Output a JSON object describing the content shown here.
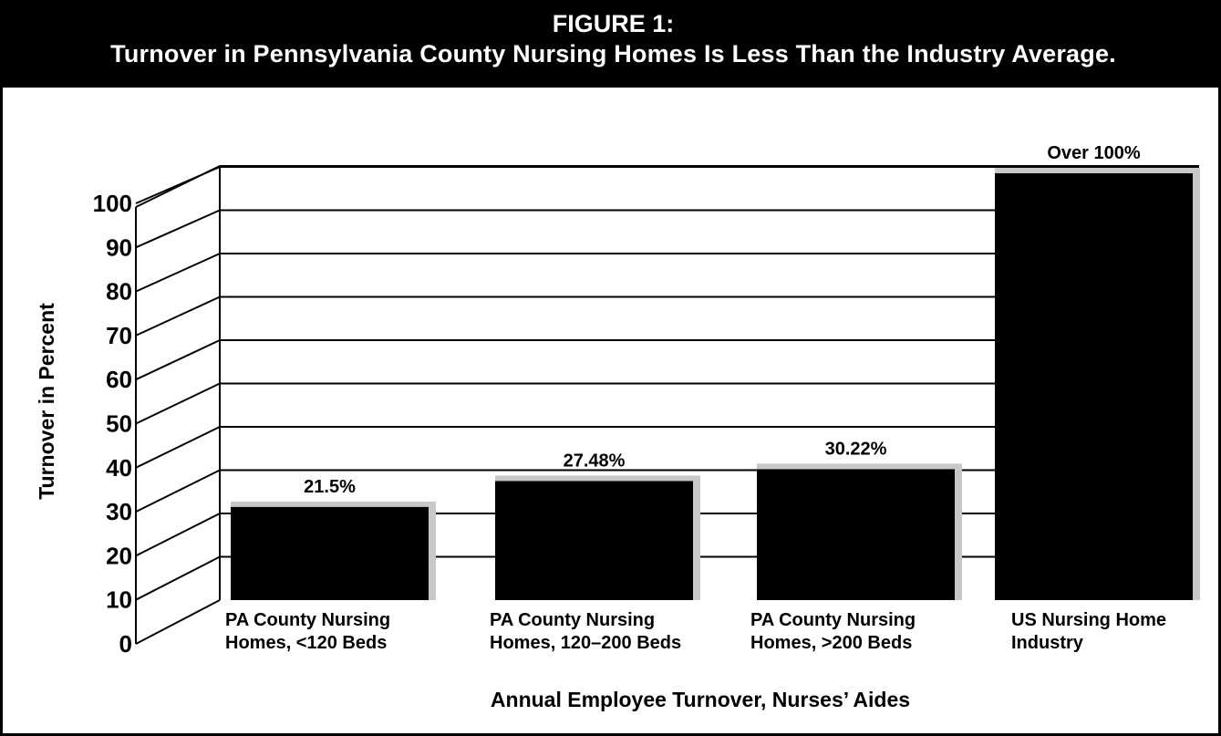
{
  "header": {
    "line1": "FIGURE 1:",
    "line2": "Turnover in Pennsylvania County Nursing Homes Is Less Than the Industry Average."
  },
  "chart_data": {
    "type": "bar",
    "title": "FIGURE 1: Turnover in Pennsylvania County Nursing Homes Is Less Than the Industry Average.",
    "xlabel": "Annual Employee Turnover, Nurses’ Aides",
    "ylabel": "Turnover in Percent",
    "ylim": [
      0,
      100
    ],
    "yticks": [
      "0",
      "10",
      "20",
      "30",
      "40",
      "50",
      "60",
      "70",
      "80",
      "90",
      "100"
    ],
    "grid": true,
    "categories": [
      [
        "PA County Nursing",
        "Homes,  <120 Beds"
      ],
      [
        "PA County Nursing",
        "Homes, 120–200 Beds"
      ],
      [
        "PA County Nursing",
        "Homes, >200 Beds"
      ],
      [
        "US Nursing Home",
        "Industry"
      ]
    ],
    "values": [
      21.5,
      27.48,
      30.22,
      100
    ],
    "value_labels": [
      "21.5%",
      "27.48%",
      "30.22%",
      "Over 100%"
    ],
    "colors": {
      "bar": "#000000",
      "bar_shadow": "#c8c8c8",
      "grid": "#000000"
    }
  }
}
